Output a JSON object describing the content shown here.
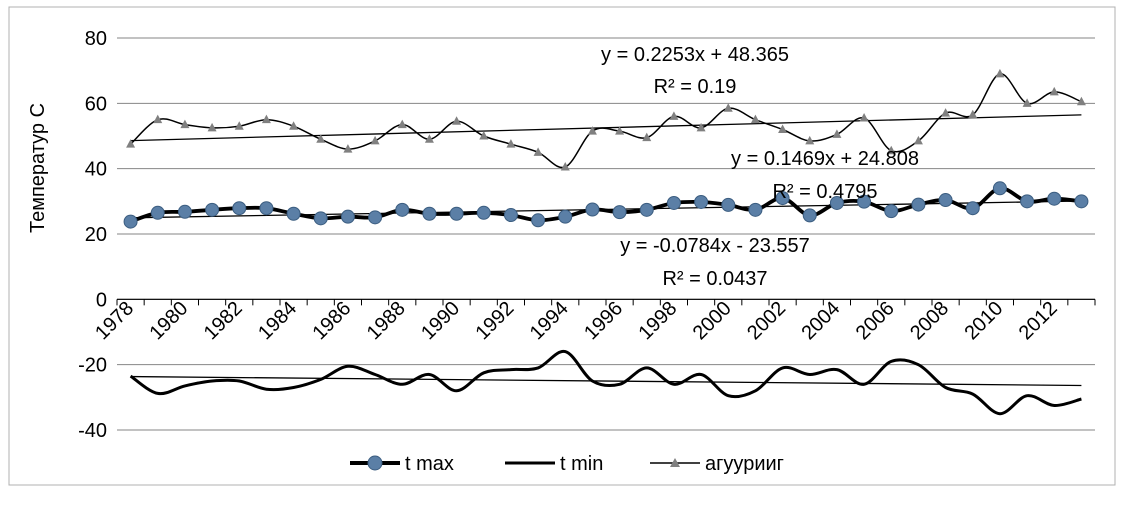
{
  "chart_data": {
    "type": "line",
    "ylabel": "Температур С",
    "ylim": [
      -40,
      80
    ],
    "yticks": [
      -40,
      -20,
      0,
      20,
      40,
      60,
      80
    ],
    "years": [
      1978,
      1979,
      1980,
      1981,
      1982,
      1983,
      1984,
      1985,
      1986,
      1987,
      1988,
      1989,
      1990,
      1991,
      1992,
      1993,
      1994,
      1995,
      1996,
      1997,
      1998,
      1999,
      2000,
      2001,
      2002,
      2003,
      2004,
      2005,
      2006,
      2007,
      2008,
      2009,
      2010,
      2011,
      2012,
      2013
    ],
    "xtick_labels": [
      "1978",
      "1980",
      "1982",
      "1984",
      "1986",
      "1988",
      "1990",
      "1992",
      "1994",
      "1996",
      "1998",
      "2000",
      "2002",
      "2004",
      "2006",
      "2008",
      "2010",
      "2012"
    ],
    "grid": "horizontal",
    "legend_position": "bottom",
    "colors": {
      "series": "#000000",
      "marker_fill": "#5b7fa6",
      "marker_stroke": "#3b5d80",
      "triangle_fill": "#808080",
      "grid": "#868686",
      "frame": "#b0b0b0"
    },
    "series": [
      {
        "name": "t max",
        "marker": "circle",
        "values": [
          23.8,
          26.5,
          26.8,
          27.4,
          27.9,
          27.9,
          26.2,
          24.8,
          25.3,
          25.1,
          27.4,
          26.2,
          26.2,
          26.5,
          25.8,
          24.2,
          25.3,
          27.5,
          26.7,
          27.4,
          29.5,
          29.8,
          28.9,
          27.4,
          31.0,
          25.7,
          29.5,
          29.9,
          27.0,
          29.0,
          30.4,
          27.9,
          34.0,
          30.0,
          30.8,
          30.0
        ]
      },
      {
        "name": "t min",
        "marker": "none",
        "values": [
          -23.5,
          -28.8,
          -26.5,
          -25.0,
          -25.0,
          -27.5,
          -27.0,
          -24.5,
          -20.5,
          -23.0,
          -26.0,
          -23.0,
          -28.0,
          -22.5,
          -21.5,
          -21.0,
          -16.0,
          -25.0,
          -26.0,
          -21.0,
          -26.0,
          -23.0,
          -29.5,
          -28.0,
          -21.0,
          -23.0,
          -21.5,
          -26.0,
          -19.0,
          -20.0,
          -27.0,
          -29.0,
          -35.0,
          -29.5,
          -32.5,
          -30.5
        ]
      },
      {
        "name": "агуурииг",
        "marker": "triangle",
        "values": [
          47.5,
          55.0,
          53.5,
          52.5,
          53.0,
          55.0,
          53.0,
          49.0,
          46.0,
          48.5,
          53.5,
          49.0,
          54.5,
          50.0,
          47.5,
          45.0,
          40.5,
          51.5,
          51.5,
          49.5,
          56.0,
          52.5,
          58.5,
          55.0,
          52.0,
          48.5,
          50.5,
          55.5,
          45.5,
          48.5,
          57.0,
          56.5,
          69.0,
          60.0,
          63.5,
          60.5
        ]
      }
    ],
    "trendlines": [
      {
        "series": "агуурииг",
        "slope": 0.2253,
        "intercept": 48.365,
        "equation": "y = 0.2253x + 48.365",
        "r2": "R² = 0.19"
      },
      {
        "series": "t max",
        "slope": 0.1469,
        "intercept": 24.808,
        "equation": "y = 0.1469x + 24.808",
        "r2": "R² = 0.4795"
      },
      {
        "series": "t min",
        "slope": -0.0784,
        "intercept": -23.557,
        "equation": "y = -0.0784x - 23.557",
        "r2": "R² = 0.0437"
      }
    ]
  }
}
